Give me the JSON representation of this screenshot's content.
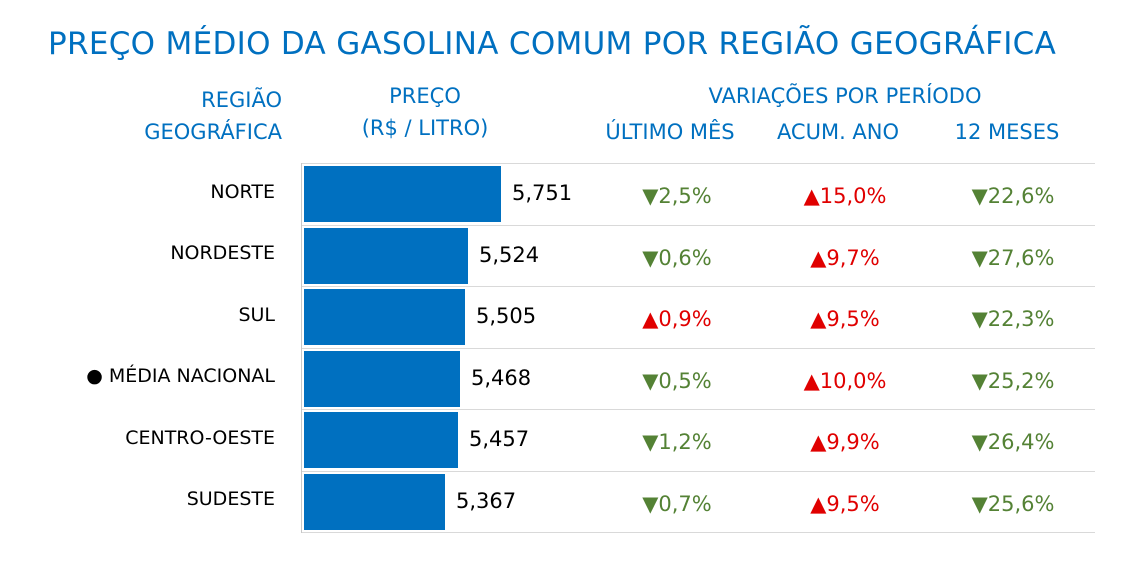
{
  "title": "PREÇO MÉDIO DA GASOLINA COMUM POR REGIÃO GEOGRÁFICA",
  "headers": {
    "region_line1": "REGIÃO",
    "region_line2": "GEOGRÁFICA",
    "price_line1": "PREÇO",
    "price_line2": "(R$ / LITRO)",
    "variations": "VARIAÇÕES POR PERÍODO",
    "last_month": "ÚLTIMO MÊS",
    "year_to_date": "ACUM. ANO",
    "twelve_months": "12 MESES"
  },
  "colors": {
    "title": "#0070c0",
    "bar": "#0070c0",
    "up": "#e00000",
    "down": "#548235"
  },
  "chart_data": {
    "type": "bar",
    "orientation": "horizontal",
    "categories": [
      "NORTE",
      "NORDESTE",
      "SUL",
      "● MÉDIA NACIONAL",
      "CENTRO-OESTE",
      "SUDESTE"
    ],
    "values": [
      5.751,
      5.524,
      5.505,
      5.468,
      5.457,
      5.367
    ],
    "value_labels": [
      "5,751",
      "5,524",
      "5,505",
      "5,468",
      "5,457",
      "5,367"
    ],
    "xlim": [
      4.4,
      5.75
    ],
    "variations": {
      "last_month": [
        {
          "dir": "down",
          "text": "2,5%"
        },
        {
          "dir": "down",
          "text": "0,6%"
        },
        {
          "dir": "up",
          "text": "0,9%"
        },
        {
          "dir": "down",
          "text": "0,5%"
        },
        {
          "dir": "down",
          "text": "1,2%"
        },
        {
          "dir": "down",
          "text": "0,7%"
        }
      ],
      "year_to_date": [
        {
          "dir": "up",
          "text": "15,0%"
        },
        {
          "dir": "up",
          "text": "9,7%"
        },
        {
          "dir": "up",
          "text": "9,5%"
        },
        {
          "dir": "up",
          "text": "10,0%"
        },
        {
          "dir": "up",
          "text": "9,9%"
        },
        {
          "dir": "up",
          "text": "9,5%"
        }
      ],
      "twelve_months": [
        {
          "dir": "down",
          "text": "22,6%"
        },
        {
          "dir": "down",
          "text": "27,6%"
        },
        {
          "dir": "down",
          "text": "22,3%"
        },
        {
          "dir": "down",
          "text": "25,2%"
        },
        {
          "dir": "down",
          "text": "26,4%"
        },
        {
          "dir": "down",
          "text": "25,6%"
        }
      ]
    }
  }
}
